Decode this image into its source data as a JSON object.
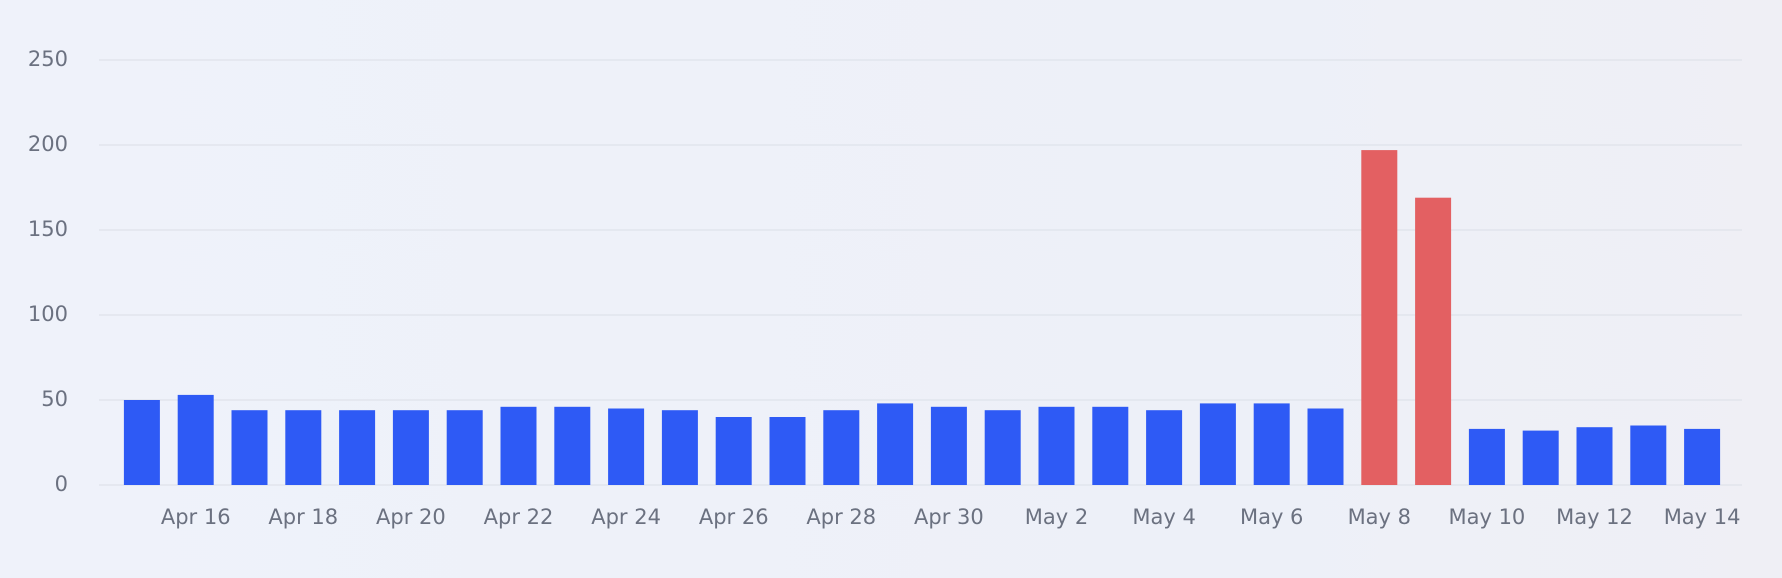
{
  "chart_data": {
    "type": "bar",
    "categories": [
      null,
      "Apr 16",
      null,
      "Apr 18",
      null,
      "Apr 20",
      null,
      "Apr 22",
      null,
      "Apr 24",
      null,
      "Apr 26",
      null,
      "Apr 28",
      null,
      "Apr 30",
      null,
      "May 2",
      null,
      "May 4",
      null,
      "May 6",
      null,
      "May 8",
      null,
      "May 10",
      null,
      "May 12",
      null,
      "May 14"
    ],
    "values": [
      50,
      53,
      44,
      44,
      44,
      44,
      44,
      46,
      46,
      45,
      44,
      40,
      40,
      44,
      48,
      46,
      44,
      46,
      46,
      44,
      48,
      48,
      45,
      197,
      169,
      33,
      32,
      34,
      35,
      33
    ],
    "colors": [
      "#2e5af5",
      "#2e5af5",
      "#2e5af5",
      "#2e5af5",
      "#2e5af5",
      "#2e5af5",
      "#2e5af5",
      "#2e5af5",
      "#2e5af5",
      "#2e5af5",
      "#2e5af5",
      "#2e5af5",
      "#2e5af5",
      "#2e5af5",
      "#2e5af5",
      "#2e5af5",
      "#2e5af5",
      "#2e5af5",
      "#2e5af5",
      "#2e5af5",
      "#2e5af5",
      "#2e5af5",
      "#2e5af5",
      "#e36062",
      "#e36062",
      "#2e5af5",
      "#2e5af5",
      "#2e5af5",
      "#2e5af5",
      "#2e5af5"
    ],
    "ylim": [
      0,
      250
    ],
    "yticks": [
      0,
      50,
      100,
      150,
      200,
      250
    ],
    "grid": true
  }
}
